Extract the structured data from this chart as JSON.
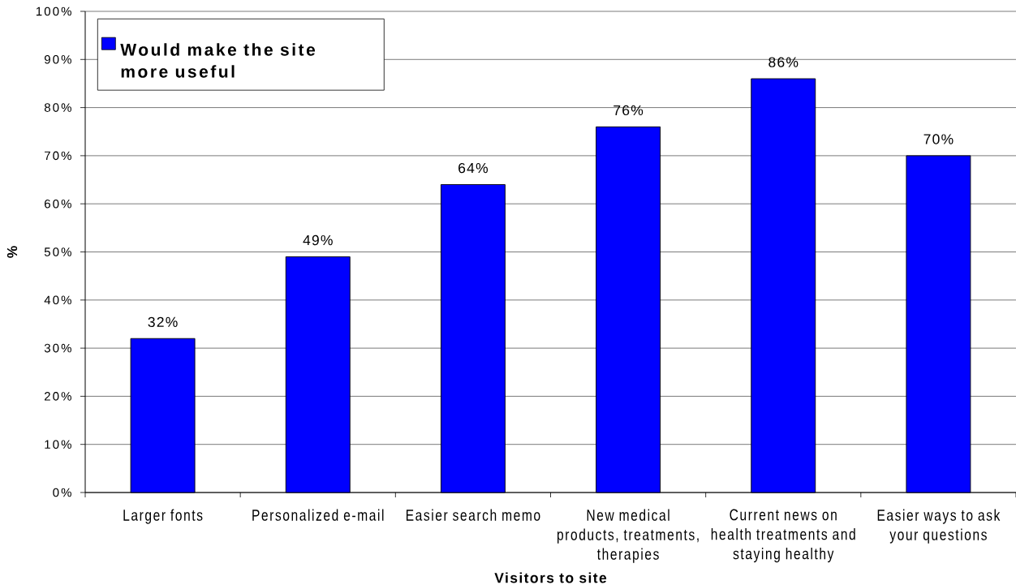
{
  "chart_data": {
    "type": "bar",
    "xlabel": "Visitors to site",
    "ylabel": "%",
    "categories": [
      "Larger fonts",
      "Personalized e-mail",
      "Easier search memo",
      "New medical products, treatments, therapies",
      "Current news on health treatments and staying healthy",
      "Easier ways to ask your questions"
    ],
    "series": [
      {
        "name": "Would make the site more useful",
        "color": "#0000ff",
        "values": [
          32,
          49,
          64,
          76,
          86,
          70
        ],
        "value_labels": [
          "32%",
          "49%",
          "64%",
          "76%",
          "86%",
          "70%"
        ]
      }
    ],
    "ylim": [
      0,
      100
    ],
    "yticks": [
      {
        "value": 0,
        "label": "0%"
      },
      {
        "value": 10,
        "label": "10%"
      },
      {
        "value": 20,
        "label": "20%"
      },
      {
        "value": 30,
        "label": "30%"
      },
      {
        "value": 40,
        "label": "40%"
      },
      {
        "value": 50,
        "label": "50%"
      },
      {
        "value": 60,
        "label": "60%"
      },
      {
        "value": 70,
        "label": "70%"
      },
      {
        "value": 80,
        "label": "80%"
      },
      {
        "value": 90,
        "label": "90%"
      },
      {
        "value": 100,
        "label": "100%"
      }
    ],
    "grid": "y",
    "legend": "top left"
  }
}
